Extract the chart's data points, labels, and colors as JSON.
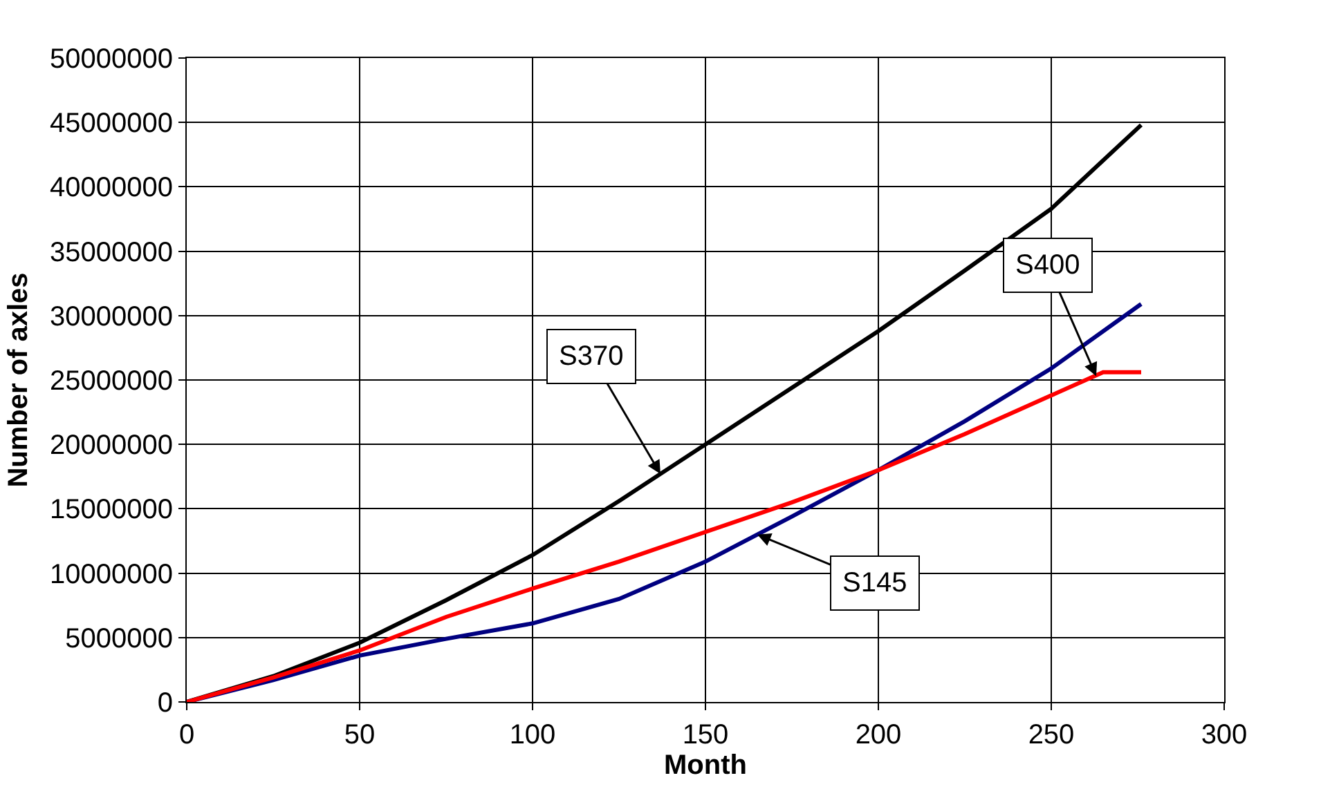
{
  "chart_data": {
    "type": "line",
    "xlabel": "Month",
    "ylabel": "Number of axles",
    "xlim": [
      0,
      300
    ],
    "xticks": [
      0,
      50,
      100,
      150,
      200,
      250,
      300
    ],
    "ylim": [
      0,
      50000000
    ],
    "yticks": [
      0,
      5000000,
      10000000,
      15000000,
      20000000,
      25000000,
      30000000,
      35000000,
      40000000,
      45000000,
      50000000
    ],
    "grid": true,
    "marker": "none",
    "line_style": "solid",
    "series": [
      {
        "color": "#000000",
        "x": [
          0,
          25,
          50,
          75,
          100,
          125,
          150,
          175,
          200,
          225,
          250,
          276
        ],
        "values": [
          0,
          2000000,
          4600000,
          7900000,
          11400000,
          15600000,
          20000000,
          24400000,
          28800000,
          33500000,
          38300000,
          44800000
        ]
      },
      {
        "color": "#000080",
        "x": [
          0,
          25,
          50,
          75,
          100,
          125,
          150,
          175,
          200,
          225,
          250,
          276
        ],
        "values": [
          0,
          1700000,
          3600000,
          4900000,
          6100000,
          8000000,
          10900000,
          14400000,
          18000000,
          21800000,
          25900000,
          30900000
        ]
      },
      {
        "color": "#ff0000",
        "x": [
          0,
          25,
          50,
          75,
          100,
          125,
          150,
          175,
          200,
          225,
          250,
          265,
          276
        ],
        "values": [
          0,
          1900000,
          4000000,
          6600000,
          8800000,
          10900000,
          13200000,
          15500000,
          18000000,
          20800000,
          23800000,
          25600000,
          25600000
        ]
      }
    ],
    "annotations": [
      {
        "text": "S370",
        "x": 137,
        "y": 17700000
      },
      {
        "text": "S400",
        "x": 263,
        "y": 25300000
      },
      {
        "text": "S145",
        "x": 165,
        "y": 13000000
      }
    ]
  }
}
